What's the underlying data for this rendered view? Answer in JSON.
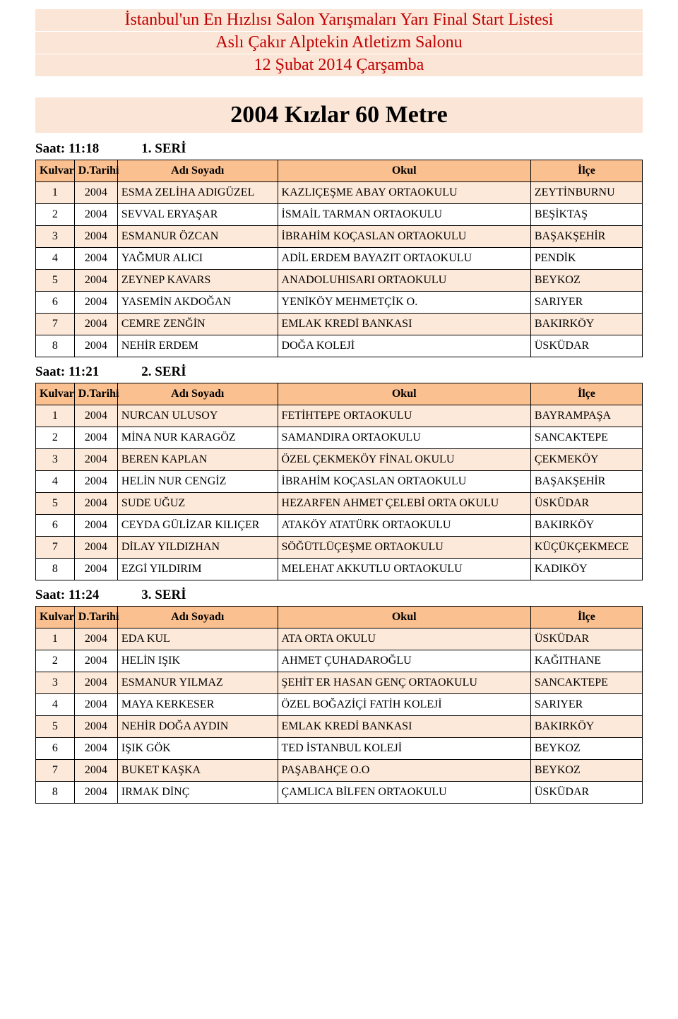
{
  "header": {
    "line1": "İstanbul'un En Hızlısı Salon Yarışmaları Yarı Final Start Listesi",
    "line2": "Aslı Çakır Alptekin Atletizm Salonu",
    "line3": "12 Şubat 2014 Çarşamba"
  },
  "main_title": "2004 Kızlar 60 Metre",
  "columns": {
    "kulvar": "Kulvar",
    "tarih": "D.Tarihi",
    "ad": "Adı Soyadı",
    "okul": "Okul",
    "ilce": "İlçe"
  },
  "colors": {
    "header_band_bg": "#fbe5d6",
    "header_text": "#c00000",
    "title_bg": "#fbe5d6",
    "table_header_bg": "#fac090",
    "row_odd_bg": "#fde9d9",
    "row_even_bg": "#ffffff",
    "border": "#000000"
  },
  "seriler": [
    {
      "saat_label": "Saat:  11:18",
      "seri_label": "1. SERİ",
      "rows": [
        {
          "k": "1",
          "t": "2004",
          "ad": "ESMA ZELİHA ADIGÜZEL",
          "okul": "KAZLIÇEŞME ABAY ORTAOKULU",
          "ilce": "ZEYTİNBURNU"
        },
        {
          "k": "2",
          "t": "2004",
          "ad": "SEVVAL ERYAŞAR",
          "okul": "İSMAİL TARMAN ORTAOKULU",
          "ilce": "BEŞİKTAŞ"
        },
        {
          "k": "3",
          "t": "2004",
          "ad": "ESMANUR ÖZCAN",
          "okul": "İBRAHİM KOÇASLAN ORTAOKULU",
          "ilce": "BAŞAKŞEHİR"
        },
        {
          "k": "4",
          "t": "2004",
          "ad": "YAĞMUR ALICI",
          "okul": "ADİL ERDEM BAYAZIT ORTAOKULU",
          "ilce": "PENDİK"
        },
        {
          "k": "5",
          "t": "2004",
          "ad": "ZEYNEP KAVARS",
          "okul": "ANADOLUHISARI ORTAOKULU",
          "ilce": "BEYKOZ"
        },
        {
          "k": "6",
          "t": "2004",
          "ad": "YASEMİN AKDOĞAN",
          "okul": "YENİKÖY MEHMETÇİK O.",
          "ilce": "SARIYER"
        },
        {
          "k": "7",
          "t": "2004",
          "ad": "CEMRE ZENĞİN",
          "okul": "EMLAK KREDİ BANKASI",
          "ilce": "BAKIRKÖY"
        },
        {
          "k": "8",
          "t": "2004",
          "ad": "NEHİR ERDEM",
          "okul": "DOĞA KOLEJİ",
          "ilce": "ÜSKÜDAR"
        }
      ]
    },
    {
      "saat_label": "Saat:  11:21",
      "seri_label": "2. SERİ",
      "rows": [
        {
          "k": "1",
          "t": "2004",
          "ad": "NURCAN ULUSOY",
          "okul": "FETİHTEPE ORTAOKULU",
          "ilce": "BAYRAMPAŞA"
        },
        {
          "k": "2",
          "t": "2004",
          "ad": "MİNA NUR KARAGÖZ",
          "okul": "SAMANDIRA ORTAOKULU",
          "ilce": "SANCAKTEPE"
        },
        {
          "k": "3",
          "t": "2004",
          "ad": "BEREN KAPLAN",
          "okul": "ÖZEL ÇEKMEKÖY FİNAL OKULU",
          "ilce": "ÇEKMEKÖY"
        },
        {
          "k": "4",
          "t": "2004",
          "ad": "HELİN NUR CENGİZ",
          "okul": "İBRAHİM KOÇASLAN ORTAOKULU",
          "ilce": "BAŞAKŞEHİR"
        },
        {
          "k": "5",
          "t": "2004",
          "ad": "SUDE UĞUZ",
          "okul": "HEZARFEN AHMET ÇELEBİ ORTA OKULU",
          "ilce": "ÜSKÜDAR"
        },
        {
          "k": "6",
          "t": "2004",
          "ad": "CEYDA GÜLİZAR KILIÇER",
          "okul": "ATAKÖY ATATÜRK ORTAOKULU",
          "ilce": "BAKIRKÖY"
        },
        {
          "k": "7",
          "t": "2004",
          "ad": "DİLAY YILDIZHAN",
          "okul": "SÖĞÜTLÜÇEŞME ORTAOKULU",
          "ilce": "KÜÇÜKÇEKMECE"
        },
        {
          "k": "8",
          "t": "2004",
          "ad": "EZGİ YILDIRIM",
          "okul": "MELEHAT AKKUTLU ORTAOKULU",
          "ilce": "KADIKÖY"
        }
      ]
    },
    {
      "saat_label": "Saat:  11:24",
      "seri_label": "3. SERİ",
      "rows": [
        {
          "k": "1",
          "t": "2004",
          "ad": "EDA KUL",
          "okul": "ATA ORTA OKULU",
          "ilce": "ÜSKÜDAR"
        },
        {
          "k": "2",
          "t": "2004",
          "ad": "HELİN IŞIK",
          "okul": "AHMET ÇUHADAROĞLU",
          "ilce": "KAĞITHANE"
        },
        {
          "k": "3",
          "t": "2004",
          "ad": "ESMANUR YILMAZ",
          "okul": "ŞEHİT ER HASAN GENÇ ORTAOKULU",
          "ilce": "SANCAKTEPE"
        },
        {
          "k": "4",
          "t": "2004",
          "ad": "MAYA KERKESER",
          "okul": "ÖZEL BOĞAZİÇİ FATİH KOLEJİ",
          "ilce": "SARIYER"
        },
        {
          "k": "5",
          "t": "2004",
          "ad": "NEHİR DOĞA AYDIN",
          "okul": "EMLAK KREDİ BANKASI",
          "ilce": "BAKIRKÖY"
        },
        {
          "k": "6",
          "t": "2004",
          "ad": "IŞIK GÖK",
          "okul": "TED İSTANBUL KOLEJİ",
          "ilce": "BEYKOZ"
        },
        {
          "k": "7",
          "t": "2004",
          "ad": "BUKET KAŞKA",
          "okul": "PAŞABAHÇE O.O",
          "ilce": "BEYKOZ"
        },
        {
          "k": "8",
          "t": "2004",
          "ad": "IRMAK DİNÇ",
          "okul": "ÇAMLICA BİLFEN ORTAOKULU",
          "ilce": "ÜSKÜDAR"
        }
      ]
    }
  ]
}
